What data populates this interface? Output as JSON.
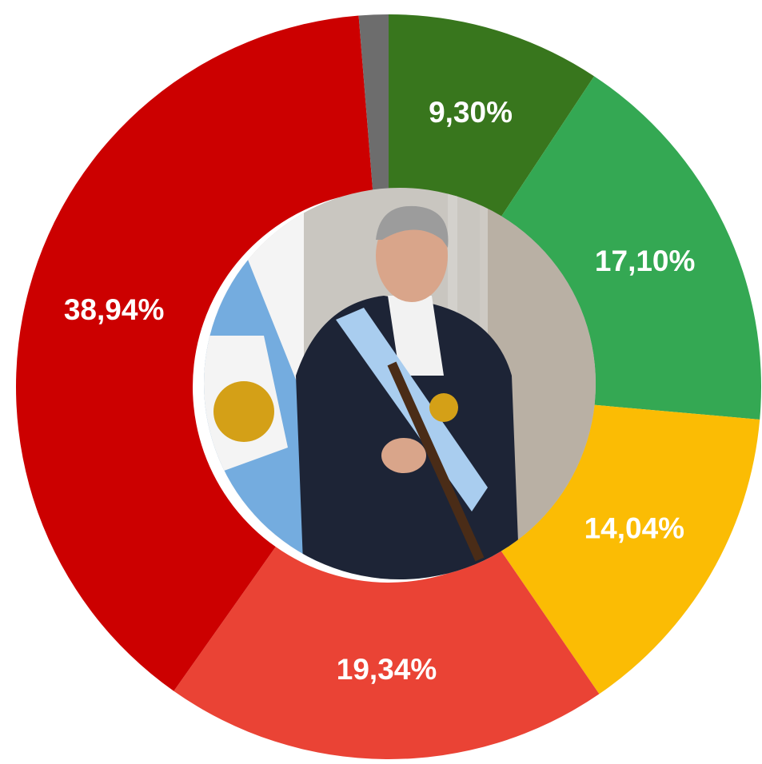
{
  "chart_data": {
    "type": "donut",
    "values": [
      9.3,
      17.1,
      14.04,
      19.34,
      38.94,
      1.28
    ],
    "value_labels": [
      "9,30%",
      "17,10%",
      "14,04%",
      "19,34%",
      "38,94%",
      null
    ],
    "colors": [
      "#38761d",
      "#34a853",
      "#fbbc04",
      "#ea4335",
      "#cc0000",
      "#6d6d6d"
    ]
  }
}
